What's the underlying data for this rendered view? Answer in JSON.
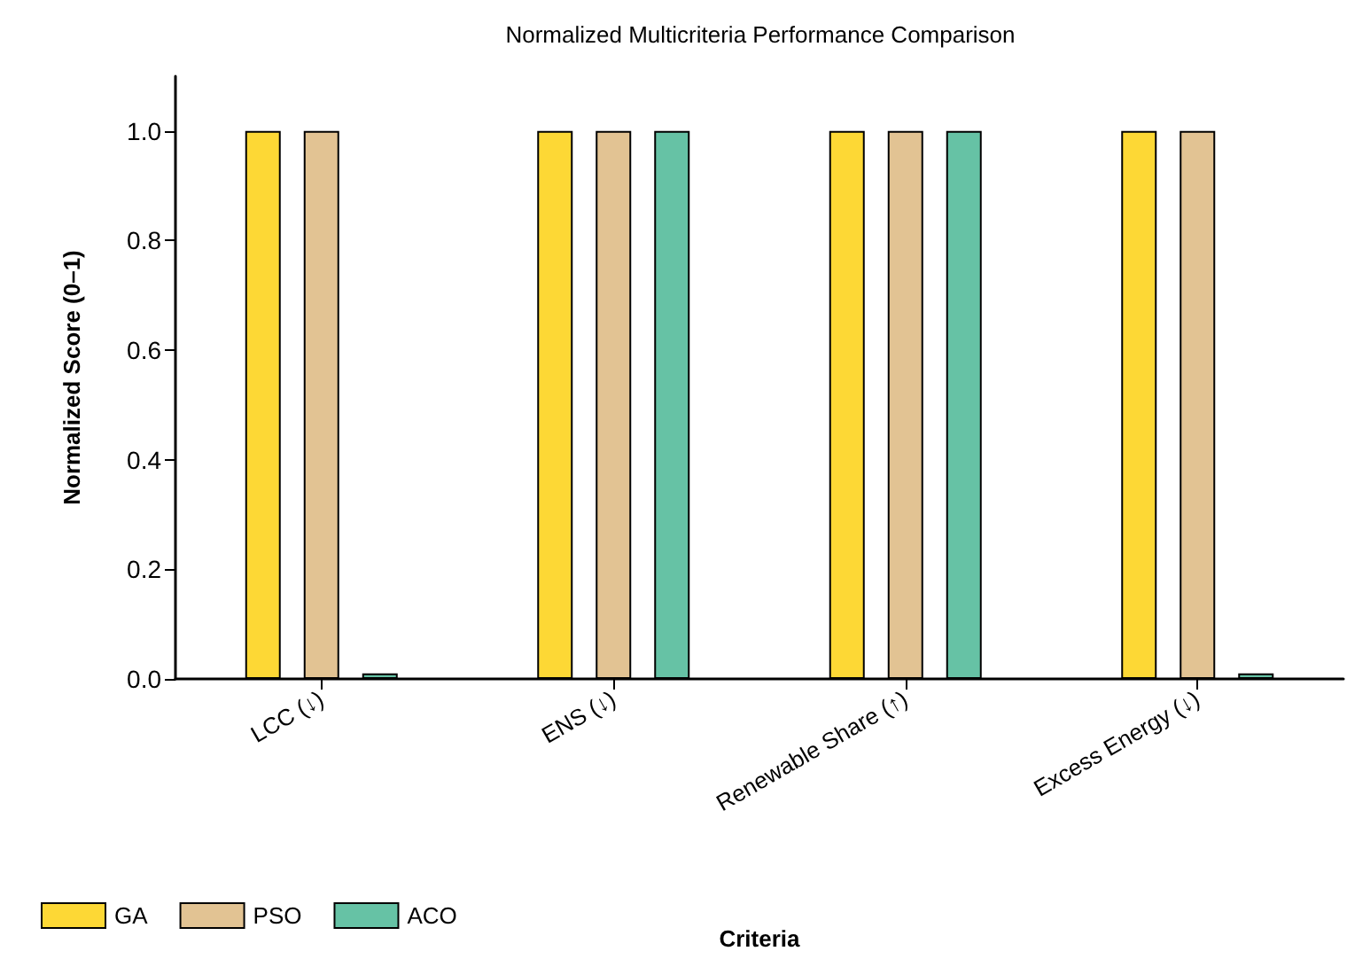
{
  "chart_data": {
    "type": "bar",
    "title": "Normalized Multicriteria Performance Comparison",
    "xlabel": "Criteria",
    "ylabel": "Normalized Score (0–1)",
    "categories": [
      "LCC (↓)",
      "ENS (↓)",
      "Renewable Share (↑)",
      "Excess Energy (↓)"
    ],
    "series": [
      {
        "name": "GA",
        "color": "#fdd835",
        "values": [
          1.0,
          1.0,
          1.0,
          1.0
        ]
      },
      {
        "name": "PSO",
        "color": "#e2c393",
        "values": [
          1.0,
          1.0,
          1.0,
          1.0
        ]
      },
      {
        "name": "ACO",
        "color": "#66c2a5",
        "values": [
          0.01,
          1.0,
          1.0,
          0.01
        ]
      }
    ],
    "ylim": [
      0,
      1.1
    ],
    "yticks": [
      {
        "value": 0,
        "label": "0.0"
      },
      0.2,
      0.4,
      0.6,
      0.8,
      {
        "value": 1,
        "label": "1.0"
      }
    ],
    "grid": false,
    "legend": "bottom left"
  }
}
